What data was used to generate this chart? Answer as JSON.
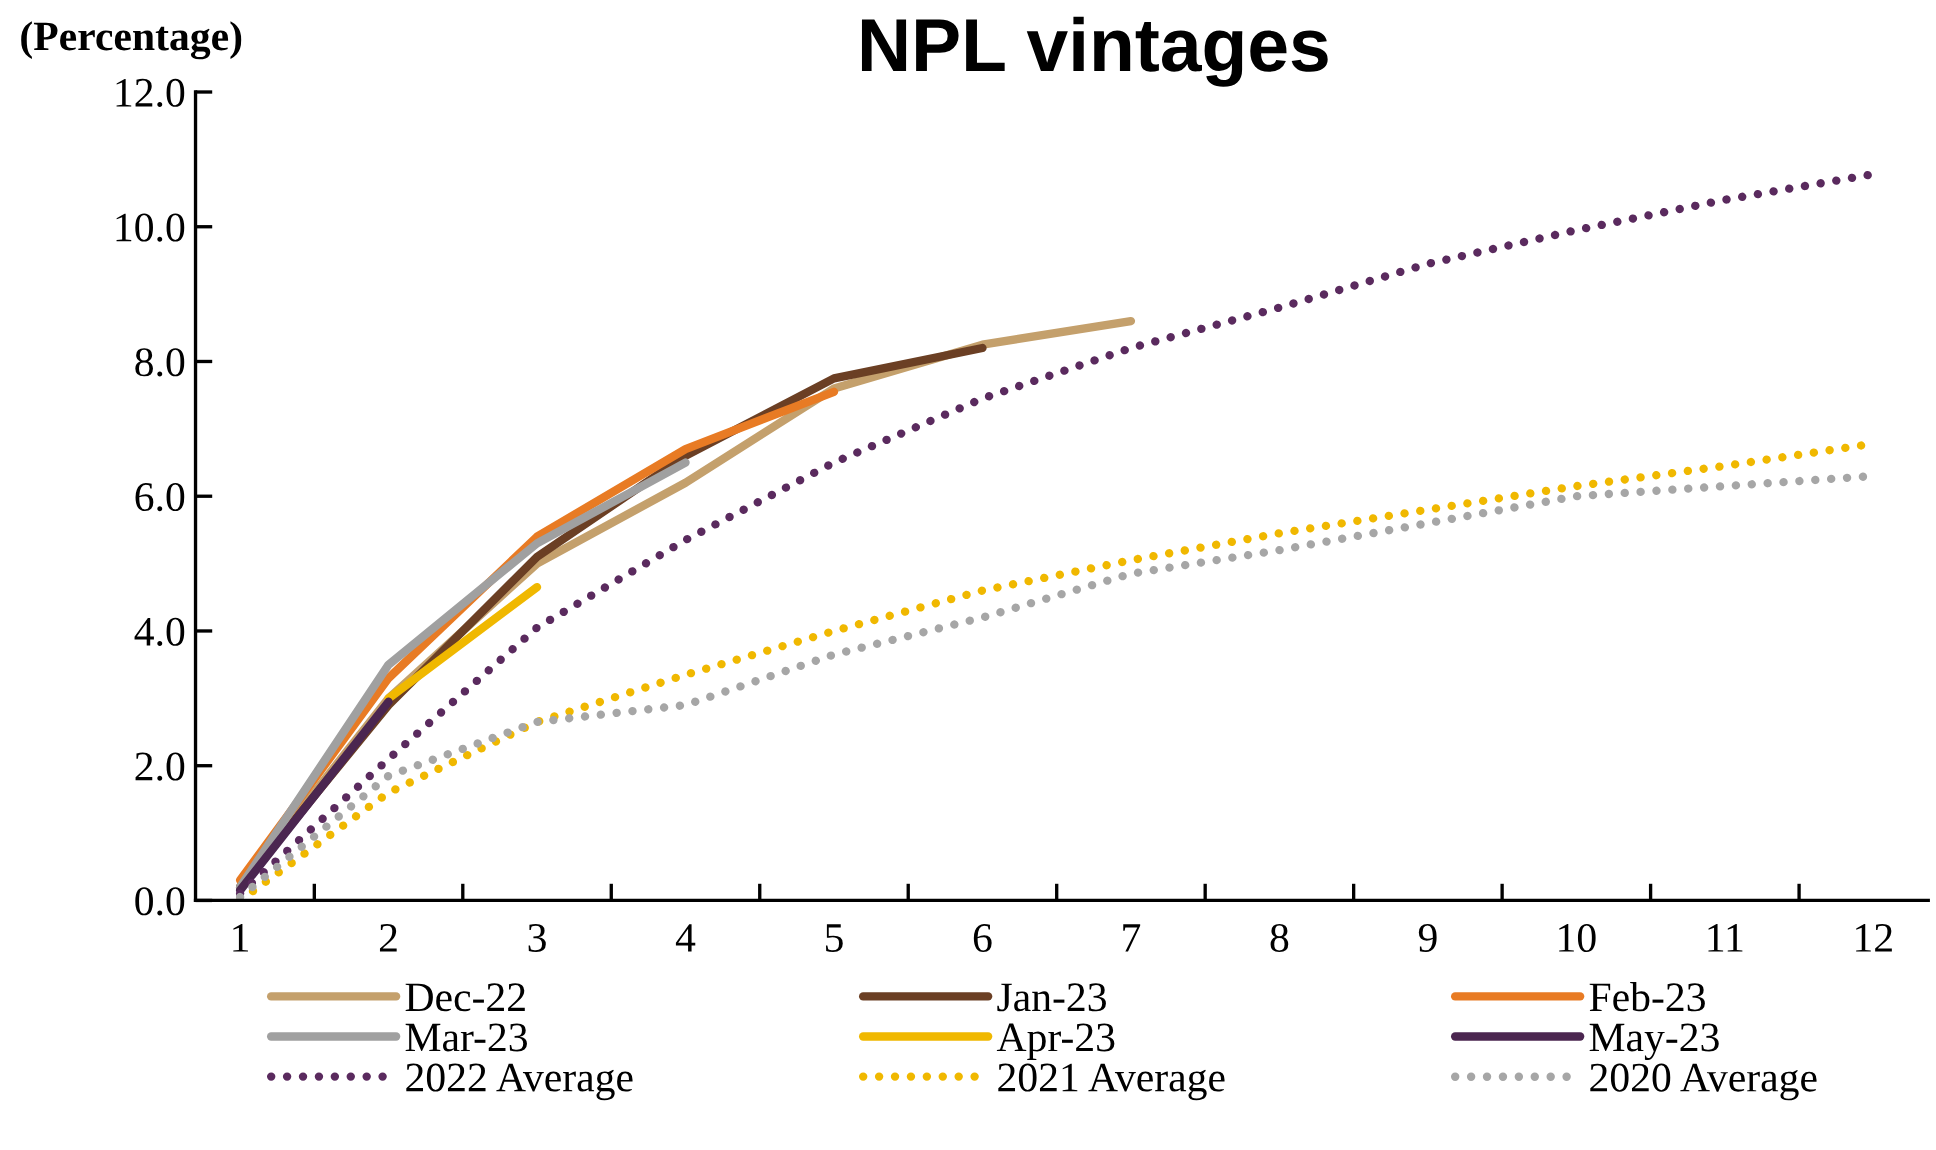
{
  "chart_data": {
    "type": "line",
    "title": "NPL vintages",
    "ylabel": "(Percentage)",
    "categories": [
      "1",
      "2",
      "3",
      "4",
      "5",
      "6",
      "7",
      "8",
      "9",
      "10",
      "11",
      "12"
    ],
    "ylim": [
      0,
      12
    ],
    "yticks": [
      {
        "value": 0,
        "label": "0.0"
      },
      {
        "value": 2,
        "label": "2.0"
      },
      {
        "value": 4,
        "label": "4.0"
      },
      {
        "value": 6,
        "label": "6.0"
      },
      {
        "value": 8,
        "label": "8.0"
      },
      {
        "value": 10,
        "label": "10.0"
      },
      {
        "value": 12,
        "label": "12.0"
      }
    ],
    "grid": false,
    "legend": "bottom",
    "marker": "none",
    "series": [
      {
        "name": "Dec-22",
        "color": "#c4a06c",
        "line_style": "solid",
        "values": [
          0.2,
          3.0,
          5.0,
          6.2,
          7.6,
          8.25,
          8.6,
          null,
          null,
          null,
          null,
          null
        ]
      },
      {
        "name": "Jan-23",
        "color": "#6b3f24",
        "line_style": "solid",
        "values": [
          0.2,
          2.9,
          5.1,
          6.6,
          7.75,
          8.2,
          null,
          null,
          null,
          null,
          null,
          null
        ]
      },
      {
        "name": "Feb-23",
        "color": "#e87b24",
        "line_style": "solid",
        "values": [
          0.3,
          3.3,
          5.4,
          6.7,
          7.55,
          null,
          null,
          null,
          null,
          null,
          null,
          null
        ]
      },
      {
        "name": "Mar-23",
        "color": "#a0a0a0",
        "line_style": "solid",
        "values": [
          0.2,
          3.5,
          5.3,
          6.5,
          null,
          null,
          null,
          null,
          null,
          null,
          null,
          null
        ]
      },
      {
        "name": "Apr-23",
        "color": "#f0b800",
        "line_style": "solid",
        "values": [
          null,
          3.0,
          4.65,
          null,
          null,
          null,
          null,
          null,
          null,
          null,
          null,
          null
        ]
      },
      {
        "name": "May-23",
        "color": "#4b2650",
        "line_style": "solid",
        "values": [
          0.15,
          2.95,
          null,
          null,
          null,
          null,
          null,
          null,
          null,
          null,
          null,
          null
        ]
      },
      {
        "name": "2022 Average",
        "color": "#5a2a5e",
        "line_style": "dotted",
        "values": [
          0.1,
          2.1,
          4.05,
          5.35,
          6.5,
          7.45,
          8.2,
          8.8,
          9.45,
          9.95,
          10.4,
          10.78
        ]
      },
      {
        "name": "2021 Average",
        "color": "#f0b800",
        "line_style": "dotted",
        "values": [
          0.0,
          1.6,
          2.65,
          3.35,
          4.0,
          4.6,
          5.05,
          5.45,
          5.8,
          6.15,
          6.45,
          6.78
        ]
      },
      {
        "name": "2020 Average",
        "color": "#a6a6a6",
        "line_style": "dotted",
        "values": [
          0.05,
          1.85,
          2.65,
          2.9,
          3.65,
          4.2,
          4.85,
          5.2,
          5.6,
          6.0,
          6.15,
          6.3
        ]
      }
    ]
  }
}
